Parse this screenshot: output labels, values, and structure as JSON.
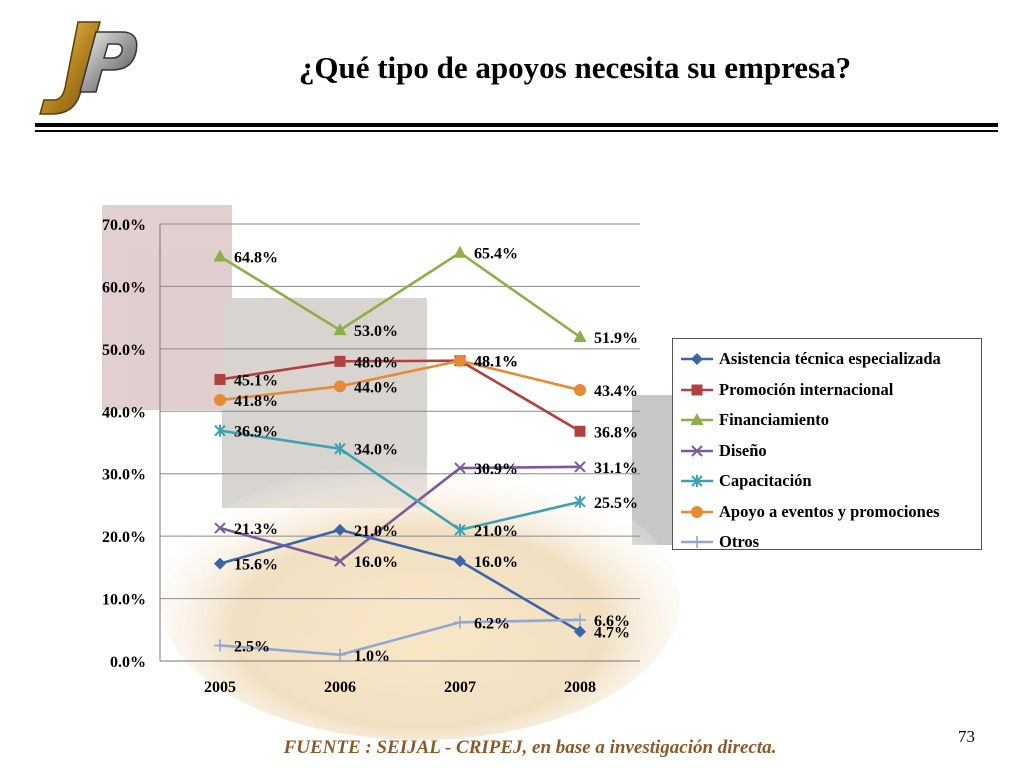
{
  "slide": {
    "title": "¿Qué tipo de apoyos necesita su empresa?",
    "page_number": "73",
    "source": "FUENTE :  SEIJAL - CRIPEJ,  en base a investigación directa."
  },
  "logo": {
    "icon": "jp-logo-icon",
    "colors": {
      "gold": "#c9a227",
      "silver": "#9a9a9a"
    }
  },
  "chart_data": {
    "type": "line",
    "title": "",
    "xlabel": "",
    "ylabel": "",
    "categories": [
      "2005",
      "2006",
      "2007",
      "2008"
    ],
    "ylim": [
      0,
      70
    ],
    "y_ticks": [
      "0.0%",
      "10.0%",
      "20.0%",
      "30.0%",
      "40.0%",
      "50.0%",
      "60.0%",
      "70.0%"
    ],
    "grid": true,
    "legend_position": "right",
    "series": [
      {
        "name": "Asistencia técnica especializada",
        "color": "#3a66a8",
        "marker": "diamond",
        "values": [
          15.6,
          21.0,
          16.0,
          4.7
        ],
        "labels": [
          "15.6%",
          "21.0%",
          "16.0%",
          "4.7%"
        ]
      },
      {
        "name": "Promoción internacional",
        "color": "#b0413e",
        "marker": "square",
        "values": [
          45.1,
          48.0,
          48.1,
          36.8
        ],
        "labels": [
          "45.1%",
          "48.0%",
          "48.1%",
          "36.8%"
        ]
      },
      {
        "name": "Financiamiento",
        "color": "#8bb04a",
        "marker": "triangle",
        "values": [
          64.8,
          53.0,
          65.4,
          51.9
        ],
        "labels": [
          "64.8%",
          "53.0%",
          "65.4%",
          "51.9%"
        ]
      },
      {
        "name": "Diseño",
        "color": "#7a5a99",
        "marker": "x",
        "values": [
          21.3,
          16.0,
          30.9,
          31.1
        ],
        "labels": [
          "21.3%",
          "16.0%",
          "30.9%",
          "31.1%"
        ]
      },
      {
        "name": "Capacitación",
        "color": "#3fa0b0",
        "marker": "star",
        "values": [
          36.9,
          34.0,
          21.0,
          25.5
        ],
        "labels": [
          "36.9%",
          "34.0%",
          "21.0%",
          "25.5%"
        ]
      },
      {
        "name": "Apoyo a eventos y promociones",
        "color": "#e58a35",
        "marker": "circle",
        "values": [
          41.8,
          44.0,
          48.1,
          43.4
        ],
        "labels": [
          "41.8%",
          "44.0%",
          "48.1%",
          "43.4%"
        ]
      },
      {
        "name": "Otros",
        "color": "#91a7d1",
        "marker": "plus",
        "values": [
          2.5,
          1.0,
          6.2,
          6.6
        ],
        "labels": [
          "2.5%",
          "1.0%",
          "6.2%",
          "6.6%"
        ]
      }
    ]
  }
}
